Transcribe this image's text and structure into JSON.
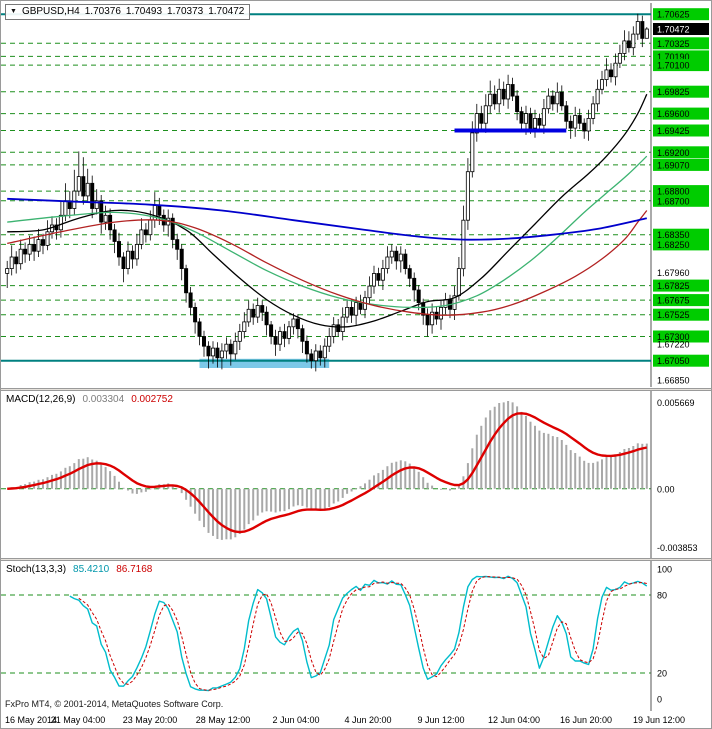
{
  "title": {
    "symbol_period": "GBPUSD,H4",
    "open": "1.70376",
    "high": "1.70493",
    "low": "1.70373",
    "close": "1.70472",
    "dropdown_icon": "▼"
  },
  "colors": {
    "background": "#ffffff",
    "grid": "#1e8f1e",
    "level_tag_bg": "#00cc00",
    "level_tag_text": "#000000",
    "current_tag_bg": "#000000",
    "current_tag_text": "#ffffff",
    "candle_up_fill": "#ffffff",
    "candle_down_fill": "#000000",
    "candle_stroke": "#000000",
    "teal_line": "#008080",
    "blue_support": "#0000e0",
    "cyan_zone": "#7cc8e8",
    "ma_black": "#000000",
    "ma_blue": "#0000cc",
    "ma_green": "#3cb371",
    "ma_red": "#b22222",
    "macd_hist": "#a8a8a8",
    "macd_signal": "#dd0000",
    "stoch_main": "#00bccc",
    "stoch_signal": "#cc0000",
    "axis_text": "#000000"
  },
  "price_scale": {
    "labels": [
      {
        "value": "1.70625",
        "kind": "level"
      },
      {
        "value": "1.70472",
        "kind": "current"
      },
      {
        "value": "1.70325",
        "kind": "level"
      },
      {
        "value": "1.70190",
        "kind": "level"
      },
      {
        "value": "1.70100",
        "kind": "level"
      },
      {
        "value": "1.69825",
        "kind": "level"
      },
      {
        "value": "1.69600",
        "kind": "level"
      },
      {
        "value": "1.69425",
        "kind": "level"
      },
      {
        "value": "1.69200",
        "kind": "level"
      },
      {
        "value": "1.69070",
        "kind": "level"
      },
      {
        "value": "1.68800",
        "kind": "level"
      },
      {
        "value": "1.68700",
        "kind": "level"
      },
      {
        "value": "1.68350",
        "kind": "level"
      },
      {
        "value": "1.68250",
        "kind": "level"
      },
      {
        "value": "1.67960",
        "kind": "tick"
      },
      {
        "value": "1.67825",
        "kind": "level"
      },
      {
        "value": "1.67675",
        "kind": "level"
      },
      {
        "value": "1.67525",
        "kind": "level"
      },
      {
        "value": "1.67300",
        "kind": "level"
      },
      {
        "value": "1.67220",
        "kind": "tick"
      },
      {
        "value": "1.67050",
        "kind": "level"
      },
      {
        "value": "1.66850",
        "kind": "tick"
      }
    ]
  },
  "indicators": {
    "macd": {
      "label": "MACD(12,26,9)",
      "main_value": "0.003304",
      "signal_value": "0.002752",
      "scale_labels": [
        {
          "text": "0.005669",
          "value": 0.005669
        },
        {
          "text": "0.00",
          "value": 0
        },
        {
          "text": "-0.003853",
          "value": -0.003853
        }
      ]
    },
    "stoch": {
      "label": "Stoch(13,3,3)",
      "main_value": "85.4210",
      "signal_value": "86.7168",
      "scale_labels": [
        {
          "text": "100",
          "value": 100
        },
        {
          "text": "80",
          "value": 80
        },
        {
          "text": "20",
          "value": 20
        },
        {
          "text": "0",
          "value": 0
        }
      ],
      "levels": [
        80,
        20
      ]
    }
  },
  "time_axis": {
    "labels": [
      "16 May 2014",
      "21 May 04:00",
      "23 May 20:00",
      "28 May 12:00",
      "2 Jun 04:00",
      "4 Jun 20:00",
      "9 Jun 12:00",
      "12 Jun 04:00",
      "16 Jun 20:00",
      "19 Jun 12:00"
    ]
  },
  "footer": {
    "copyright": "FxPro MT4, © 2001-2014, MetaQuotes Software Corp."
  },
  "chart_data": {
    "type": "candlestick",
    "symbol": "GBPUSD",
    "timeframe": "H4",
    "price_range": {
      "max": 1.7072,
      "min": 1.6682
    },
    "first_open": 1.6795,
    "closes": [
      1.68,
      1.6812,
      1.6805,
      1.682,
      1.6815,
      1.6825,
      1.6818,
      1.683,
      1.6824,
      1.6838,
      1.6845,
      1.684,
      1.6855,
      1.687,
      1.6862,
      1.688,
      1.6895,
      1.6875,
      1.6888,
      1.6862,
      1.687,
      1.6848,
      1.6855,
      1.684,
      1.6828,
      1.6812,
      1.68,
      1.6818,
      1.681,
      1.6825,
      1.684,
      1.6835,
      1.685,
      1.6865,
      1.6855,
      1.6845,
      1.6852,
      1.683,
      1.682,
      1.68,
      1.6775,
      1.676,
      1.6745,
      1.673,
      1.672,
      1.671,
      1.6718,
      1.6708,
      1.6715,
      1.6722,
      1.6712,
      1.6725,
      1.6735,
      1.6745,
      1.6758,
      1.675,
      1.6762,
      1.6755,
      1.6742,
      1.673,
      1.6722,
      1.6735,
      1.6728,
      1.674,
      1.6748,
      1.6738,
      1.6725,
      1.6712,
      1.6705,
      1.6715,
      1.6708,
      1.672,
      1.673,
      1.6742,
      1.6735,
      1.675,
      1.676,
      1.6752,
      1.6765,
      1.6758,
      1.677,
      1.6782,
      1.6795,
      1.6788,
      1.68,
      1.6812,
      1.6818,
      1.6808,
      1.6815,
      1.68,
      1.679,
      1.6778,
      1.6765,
      1.6752,
      1.6742,
      1.6755,
      1.6748,
      1.676,
      1.6768,
      1.6758,
      1.6772,
      1.68,
      1.685,
      1.69,
      1.694,
      1.696,
      1.695,
      1.6968,
      1.698,
      1.697,
      1.6985,
      1.6975,
      1.699,
      1.6978,
      1.6962,
      1.695,
      1.696,
      1.6945,
      1.6955,
      1.6948,
      1.6965,
      1.6978,
      1.697,
      1.6982,
      1.6968,
      1.6952,
      1.6945,
      1.6958,
      1.695,
      1.6942,
      1.6955,
      1.697,
      1.6985,
      1.6995,
      1.7005,
      1.6998,
      1.7012,
      1.7022,
      1.7035,
      1.7028,
      1.7042,
      1.7055,
      1.70376,
      1.70472
    ],
    "wick_high_pips": [
      8,
      12,
      6,
      10,
      7,
      9,
      8,
      11,
      6,
      12,
      9,
      7,
      14,
      18,
      10,
      22,
      26,
      20,
      15,
      8,
      12,
      6,
      10,
      7,
      6,
      9,
      5,
      10,
      6,
      11,
      12,
      7,
      10,
      14,
      8,
      6,
      9,
      5,
      6,
      5,
      4,
      6,
      5,
      4,
      6,
      5,
      7,
      6,
      8,
      7,
      5,
      9,
      8,
      10,
      9,
      6,
      8,
      5,
      6,
      4,
      7,
      5,
      8,
      6,
      6,
      5,
      4,
      6,
      5,
      7,
      6,
      8,
      9,
      8,
      6,
      10,
      7,
      9,
      6,
      8,
      7,
      10,
      8,
      6,
      9,
      11,
      7,
      5,
      8,
      5,
      4,
      6,
      5,
      4,
      7,
      9,
      6,
      8,
      7,
      5,
      10,
      12,
      15,
      14,
      12,
      10,
      8,
      12,
      14,
      9,
      11,
      8,
      10,
      7,
      6,
      5,
      8,
      6,
      9,
      5,
      10,
      8,
      6,
      10,
      7,
      5,
      6,
      9,
      7,
      5,
      9,
      8,
      10,
      9,
      12,
      7,
      10,
      9,
      11,
      10,
      8,
      8,
      6,
      2
    ],
    "wick_low_pips": [
      15,
      7,
      10,
      6,
      9,
      7,
      10,
      6,
      9,
      5,
      7,
      10,
      8,
      6,
      10,
      7,
      5,
      9,
      7,
      10,
      6,
      12,
      8,
      10,
      12,
      9,
      14,
      6,
      10,
      7,
      5,
      8,
      6,
      8,
      10,
      7,
      12,
      9,
      11,
      12,
      10,
      8,
      12,
      9,
      11,
      13,
      8,
      10,
      12,
      8,
      12,
      6,
      9,
      7,
      5,
      8,
      6,
      9,
      11,
      8,
      12,
      7,
      9,
      6,
      8,
      10,
      12,
      9,
      8,
      11,
      8,
      10,
      6,
      7,
      5,
      9,
      6,
      8,
      10,
      5,
      9,
      6,
      8,
      6,
      10,
      5,
      7,
      9,
      12,
      6,
      9,
      12,
      8,
      10,
      12,
      9,
      6,
      11,
      7,
      9,
      11,
      5,
      8,
      10,
      6,
      9,
      7,
      10,
      8,
      6,
      9,
      7,
      10,
      5,
      9,
      8,
      12,
      6,
      10,
      7,
      9,
      5,
      7,
      9,
      5,
      8,
      11,
      9,
      6,
      8,
      10,
      6,
      8,
      5,
      7,
      6,
      9,
      5,
      7,
      5,
      8,
      6,
      9,
      0
    ],
    "moving_averages": [
      {
        "name": "ma-black-medium",
        "color_key": "ma_black",
        "width": 1.3,
        "points": [
          [
            0,
            1.6838
          ],
          [
            8,
            1.684
          ],
          [
            16,
            1.6852
          ],
          [
            24,
            1.686
          ],
          [
            32,
            1.6856
          ],
          [
            40,
            1.684
          ],
          [
            46,
            1.6815
          ],
          [
            52,
            1.679
          ],
          [
            58,
            1.6768
          ],
          [
            64,
            1.6752
          ],
          [
            70,
            1.6742
          ],
          [
            76,
            1.674
          ],
          [
            82,
            1.6746
          ],
          [
            88,
            1.6756
          ],
          [
            94,
            1.6766
          ],
          [
            100,
            1.677
          ],
          [
            106,
            1.679
          ],
          [
            112,
            1.6818
          ],
          [
            118,
            1.6846
          ],
          [
            124,
            1.6874
          ],
          [
            130,
            1.6898
          ],
          [
            134,
            1.6916
          ],
          [
            138,
            1.6938
          ],
          [
            141,
            1.696
          ],
          [
            143,
            1.698
          ]
        ]
      },
      {
        "name": "ma-green-slow",
        "color_key": "ma_green",
        "width": 1.3,
        "points": [
          [
            0,
            1.6848
          ],
          [
            12,
            1.6854
          ],
          [
            24,
            1.6858
          ],
          [
            34,
            1.6852
          ],
          [
            42,
            1.6838
          ],
          [
            50,
            1.6818
          ],
          [
            58,
            1.6798
          ],
          [
            66,
            1.6782
          ],
          [
            74,
            1.677
          ],
          [
            82,
            1.6763
          ],
          [
            90,
            1.676
          ],
          [
            98,
            1.6762
          ],
          [
            105,
            1.6772
          ],
          [
            111,
            1.6788
          ],
          [
            117,
            1.6808
          ],
          [
            123,
            1.6832
          ],
          [
            129,
            1.6858
          ],
          [
            134,
            1.6878
          ],
          [
            139,
            1.6898
          ],
          [
            143,
            1.6916
          ]
        ]
      },
      {
        "name": "ma-red-slow",
        "color_key": "ma_red",
        "width": 1.3,
        "points": [
          [
            0,
            1.6826
          ],
          [
            12,
            1.6838
          ],
          [
            24,
            1.6848
          ],
          [
            34,
            1.685
          ],
          [
            42,
            1.6842
          ],
          [
            50,
            1.6826
          ],
          [
            58,
            1.6806
          ],
          [
            66,
            1.6788
          ],
          [
            74,
            1.6773
          ],
          [
            82,
            1.6762
          ],
          [
            90,
            1.6755
          ],
          [
            98,
            1.6752
          ],
          [
            106,
            1.6755
          ],
          [
            113,
            1.6763
          ],
          [
            120,
            1.6776
          ],
          [
            127,
            1.6792
          ],
          [
            133,
            1.681
          ],
          [
            138,
            1.683
          ],
          [
            141,
            1.6848
          ],
          [
            143,
            1.686
          ]
        ]
      },
      {
        "name": "ma-blue-slowest",
        "color_key": "ma_blue",
        "width": 1.8,
        "points": [
          [
            0,
            1.6872
          ],
          [
            16,
            1.6869
          ],
          [
            32,
            1.6866
          ],
          [
            48,
            1.686
          ],
          [
            64,
            1.685
          ],
          [
            80,
            1.684
          ],
          [
            92,
            1.6833
          ],
          [
            102,
            1.683
          ],
          [
            112,
            1.6831
          ],
          [
            122,
            1.6835
          ],
          [
            132,
            1.6841
          ],
          [
            143,
            1.6852
          ]
        ]
      }
    ],
    "levels": {
      "resistance_teal": 1.70625,
      "support_teal": 1.6705,
      "blue_segment": {
        "price": 1.69425,
        "from_index": 100,
        "to_index": 125
      },
      "cyan_zone": {
        "price_top": 1.6707,
        "price_bottom": 1.66975,
        "from_index": 43,
        "to_index": 72
      }
    },
    "macd_settings": {
      "fast": 12,
      "slow": 26,
      "signal": 9
    },
    "stoch_settings": {
      "k": 13,
      "d": 3,
      "slowing": 3
    }
  }
}
